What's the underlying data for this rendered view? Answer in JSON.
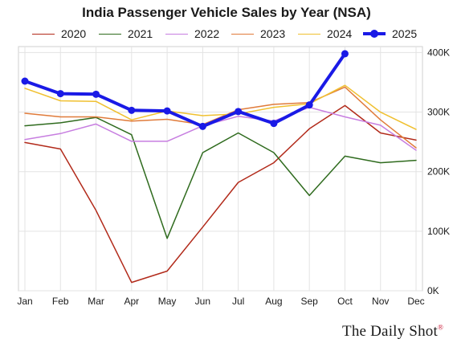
{
  "chart_data": {
    "type": "line",
    "title": "India Passenger Vehicle Sales by Year (NSA)",
    "xlabel": "",
    "ylabel": "",
    "categories": [
      "Jan",
      "Feb",
      "Mar",
      "Apr",
      "May",
      "Jun",
      "Jul",
      "Aug",
      "Sep",
      "Oct",
      "Nov",
      "Dec"
    ],
    "ylim": [
      0,
      410000
    ],
    "yticks": [
      0,
      100000,
      200000,
      300000,
      400000
    ],
    "ytick_labels": [
      "0K",
      "100K",
      "200K",
      "300K",
      "400K"
    ],
    "y_axis_side": "right",
    "grid": true,
    "legend_position": "top",
    "series": [
      {
        "name": "2020",
        "color": "#b22a1a",
        "values": [
          249000,
          238000,
          135000,
          14000,
          33000,
          107000,
          182000,
          215000,
          272000,
          311000,
          265000,
          253000
        ]
      },
      {
        "name": "2021",
        "color": "#2f6b1e",
        "values": [
          277000,
          282000,
          291000,
          262000,
          88000,
          232000,
          265000,
          232000,
          160000,
          226000,
          215000,
          219000
        ]
      },
      {
        "name": "2022",
        "color": "#c77ee0",
        "values": [
          254000,
          264000,
          280000,
          251000,
          251000,
          277000,
          293000,
          285000,
          308000,
          292000,
          278000,
          236000
        ]
      },
      {
        "name": "2023",
        "color": "#e07b3a",
        "values": [
          298000,
          292000,
          292000,
          285000,
          288000,
          279000,
          304000,
          313000,
          316000,
          342000,
          287000,
          240000
        ]
      },
      {
        "name": "2024",
        "color": "#f0c030",
        "values": [
          340000,
          319000,
          318000,
          287000,
          302000,
          294000,
          297000,
          308000,
          314000,
          345000,
          300000,
          271000
        ]
      },
      {
        "name": "2025",
        "color": "#1a1ae6",
        "thick": true,
        "markers": true,
        "values": [
          352000,
          331000,
          330000,
          303000,
          302000,
          276000,
          301000,
          281000,
          312000,
          398000,
          null,
          null
        ]
      }
    ]
  },
  "watermark": {
    "text": "The Daily Shot",
    "mark": "®"
  }
}
